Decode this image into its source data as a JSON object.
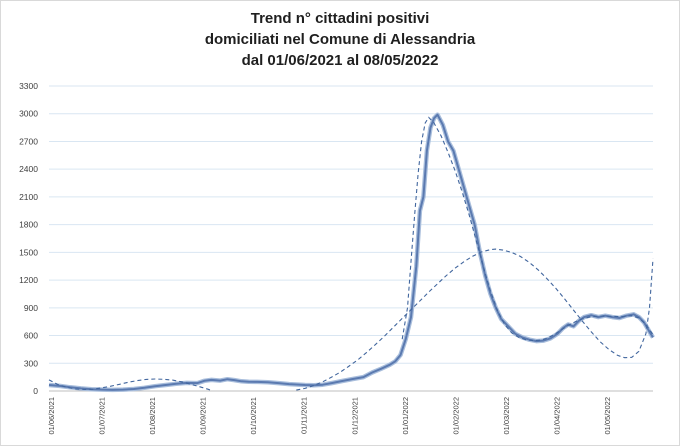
{
  "chart_data": {
    "type": "line",
    "title_lines": [
      "Trend n° cittadini positivi",
      "domiciliati nel Comune di Alessandria",
      "dal 01/06/2021 al 08/05/2022"
    ],
    "xlabel": "",
    "ylabel": "",
    "ylim": [
      0,
      3300
    ],
    "y_ticks": [
      0,
      300,
      600,
      900,
      1200,
      1500,
      1800,
      2100,
      2400,
      2700,
      3000,
      3300
    ],
    "x_ticks": [
      "01/06/2021",
      "01/07/2021",
      "01/08/2021",
      "01/09/2021",
      "01/10/2021",
      "01/11/2021",
      "01/12/2021",
      "01/01/2022",
      "01/02/2022",
      "01/03/2022",
      "01/04/2022",
      "01/05/2022"
    ],
    "xlim_days": [
      0,
      342
    ],
    "grid": "horizontal",
    "legend": "none",
    "colors": {
      "line": "#5b7ab0",
      "trend": "#41669e",
      "grid": "#d9e6f2"
    },
    "series": [
      {
        "style": "solid",
        "points": [
          [
            0,
            65
          ],
          [
            6,
            55
          ],
          [
            12,
            40
          ],
          [
            18,
            28
          ],
          [
            24,
            20
          ],
          [
            30,
            15
          ],
          [
            36,
            12
          ],
          [
            42,
            15
          ],
          [
            48,
            22
          ],
          [
            54,
            35
          ],
          [
            60,
            52
          ],
          [
            66,
            65
          ],
          [
            72,
            78
          ],
          [
            78,
            88
          ],
          [
            84,
            85
          ],
          [
            88,
            110
          ],
          [
            92,
            120
          ],
          [
            97,
            112
          ],
          [
            101,
            128
          ],
          [
            105,
            118
          ],
          [
            109,
            105
          ],
          [
            113,
            100
          ],
          [
            118,
            98
          ],
          [
            124,
            95
          ],
          [
            130,
            85
          ],
          [
            136,
            75
          ],
          [
            140,
            70
          ],
          [
            145,
            65
          ],
          [
            150,
            62
          ],
          [
            155,
            68
          ],
          [
            160,
            85
          ],
          [
            166,
            108
          ],
          [
            172,
            130
          ],
          [
            178,
            150
          ],
          [
            183,
            200
          ],
          [
            188,
            240
          ],
          [
            193,
            285
          ],
          [
            196,
            320
          ],
          [
            199,
            390
          ],
          [
            202,
            560
          ],
          [
            205,
            800
          ],
          [
            208,
            1350
          ],
          [
            210,
            1950
          ],
          [
            212,
            2100
          ],
          [
            214,
            2600
          ],
          [
            216,
            2850
          ],
          [
            218,
            2950
          ],
          [
            220,
            2990
          ],
          [
            223,
            2880
          ],
          [
            226,
            2700
          ],
          [
            229,
            2600
          ],
          [
            232,
            2400
          ],
          [
            235,
            2200
          ],
          [
            238,
            2000
          ],
          [
            241,
            1800
          ],
          [
            244,
            1500
          ],
          [
            247,
            1250
          ],
          [
            250,
            1050
          ],
          [
            253,
            900
          ],
          [
            256,
            780
          ],
          [
            260,
            700
          ],
          [
            264,
            620
          ],
          [
            268,
            580
          ],
          [
            272,
            555
          ],
          [
            276,
            540
          ],
          [
            280,
            545
          ],
          [
            284,
            570
          ],
          [
            288,
            620
          ],
          [
            291,
            680
          ],
          [
            294,
            720
          ],
          [
            297,
            700
          ],
          [
            300,
            760
          ],
          [
            303,
            800
          ],
          [
            307,
            820
          ],
          [
            311,
            800
          ],
          [
            315,
            815
          ],
          [
            319,
            800
          ],
          [
            323,
            790
          ],
          [
            327,
            815
          ],
          [
            331,
            830
          ],
          [
            334,
            800
          ],
          [
            337,
            740
          ],
          [
            340,
            640
          ],
          [
            342,
            580
          ]
        ]
      },
      {
        "style": "dashed",
        "points": [
          [
            0,
            120
          ],
          [
            5,
            70
          ],
          [
            10,
            40
          ],
          [
            15,
            22
          ],
          [
            20,
            16
          ],
          [
            25,
            20
          ],
          [
            30,
            35
          ],
          [
            35,
            52
          ],
          [
            40,
            72
          ],
          [
            45,
            95
          ],
          [
            50,
            113
          ],
          [
            55,
            125
          ],
          [
            60,
            130
          ],
          [
            65,
            127
          ],
          [
            70,
            118
          ],
          [
            75,
            100
          ],
          [
            80,
            75
          ],
          [
            85,
            48
          ],
          [
            90,
            20
          ],
          [
            92,
            5
          ]
        ]
      },
      {
        "style": "dashed",
        "points": [
          [
            140,
            10
          ],
          [
            145,
            28
          ],
          [
            150,
            60
          ],
          [
            155,
            100
          ],
          [
            160,
            150
          ],
          [
            165,
            205
          ],
          [
            170,
            270
          ],
          [
            175,
            340
          ],
          [
            180,
            420
          ],
          [
            185,
            505
          ],
          [
            190,
            595
          ],
          [
            195,
            690
          ],
          [
            200,
            785
          ],
          [
            205,
            880
          ],
          [
            210,
            975
          ],
          [
            215,
            1070
          ],
          [
            220,
            1160
          ],
          [
            225,
            1250
          ],
          [
            230,
            1330
          ],
          [
            235,
            1400
          ],
          [
            240,
            1460
          ],
          [
            245,
            1505
          ],
          [
            250,
            1530
          ],
          [
            253,
            1535
          ],
          [
            257,
            1525
          ],
          [
            262,
            1500
          ],
          [
            267,
            1455
          ],
          [
            272,
            1390
          ],
          [
            277,
            1310
          ],
          [
            282,
            1215
          ],
          [
            287,
            1110
          ],
          [
            292,
            995
          ],
          [
            297,
            875
          ],
          [
            302,
            755
          ],
          [
            307,
            640
          ],
          [
            312,
            535
          ],
          [
            317,
            450
          ],
          [
            322,
            385
          ],
          [
            326,
            360
          ],
          [
            330,
            365
          ],
          [
            334,
            430
          ],
          [
            338,
            620
          ],
          [
            340,
            900
          ],
          [
            342,
            1430
          ]
        ]
      },
      {
        "style": "dashed",
        "points": [
          [
            200,
            560
          ],
          [
            203,
            900
          ],
          [
            205,
            1400
          ],
          [
            207,
            1900
          ],
          [
            209,
            2350
          ],
          [
            211,
            2700
          ],
          [
            213,
            2900
          ],
          [
            215,
            2960
          ],
          [
            218,
            2900
          ],
          [
            222,
            2760
          ],
          [
            226,
            2580
          ],
          [
            230,
            2380
          ],
          [
            234,
            2150
          ],
          [
            238,
            1900
          ],
          [
            242,
            1620
          ],
          [
            246,
            1340
          ],
          [
            250,
            1080
          ],
          [
            254,
            870
          ],
          [
            258,
            720
          ],
          [
            262,
            630
          ],
          [
            266,
            580
          ],
          [
            270,
            555
          ],
          [
            274,
            545
          ],
          [
            278,
            550
          ],
          [
            282,
            570
          ],
          [
            286,
            610
          ],
          [
            290,
            660
          ],
          [
            294,
            710
          ],
          [
            298,
            750
          ],
          [
            302,
            780
          ],
          [
            306,
            800
          ],
          [
            310,
            808
          ],
          [
            314,
            810
          ],
          [
            318,
            808
          ],
          [
            322,
            805
          ],
          [
            326,
            808
          ],
          [
            330,
            815
          ],
          [
            334,
            790
          ],
          [
            338,
            720
          ],
          [
            342,
            610
          ]
        ]
      }
    ]
  }
}
